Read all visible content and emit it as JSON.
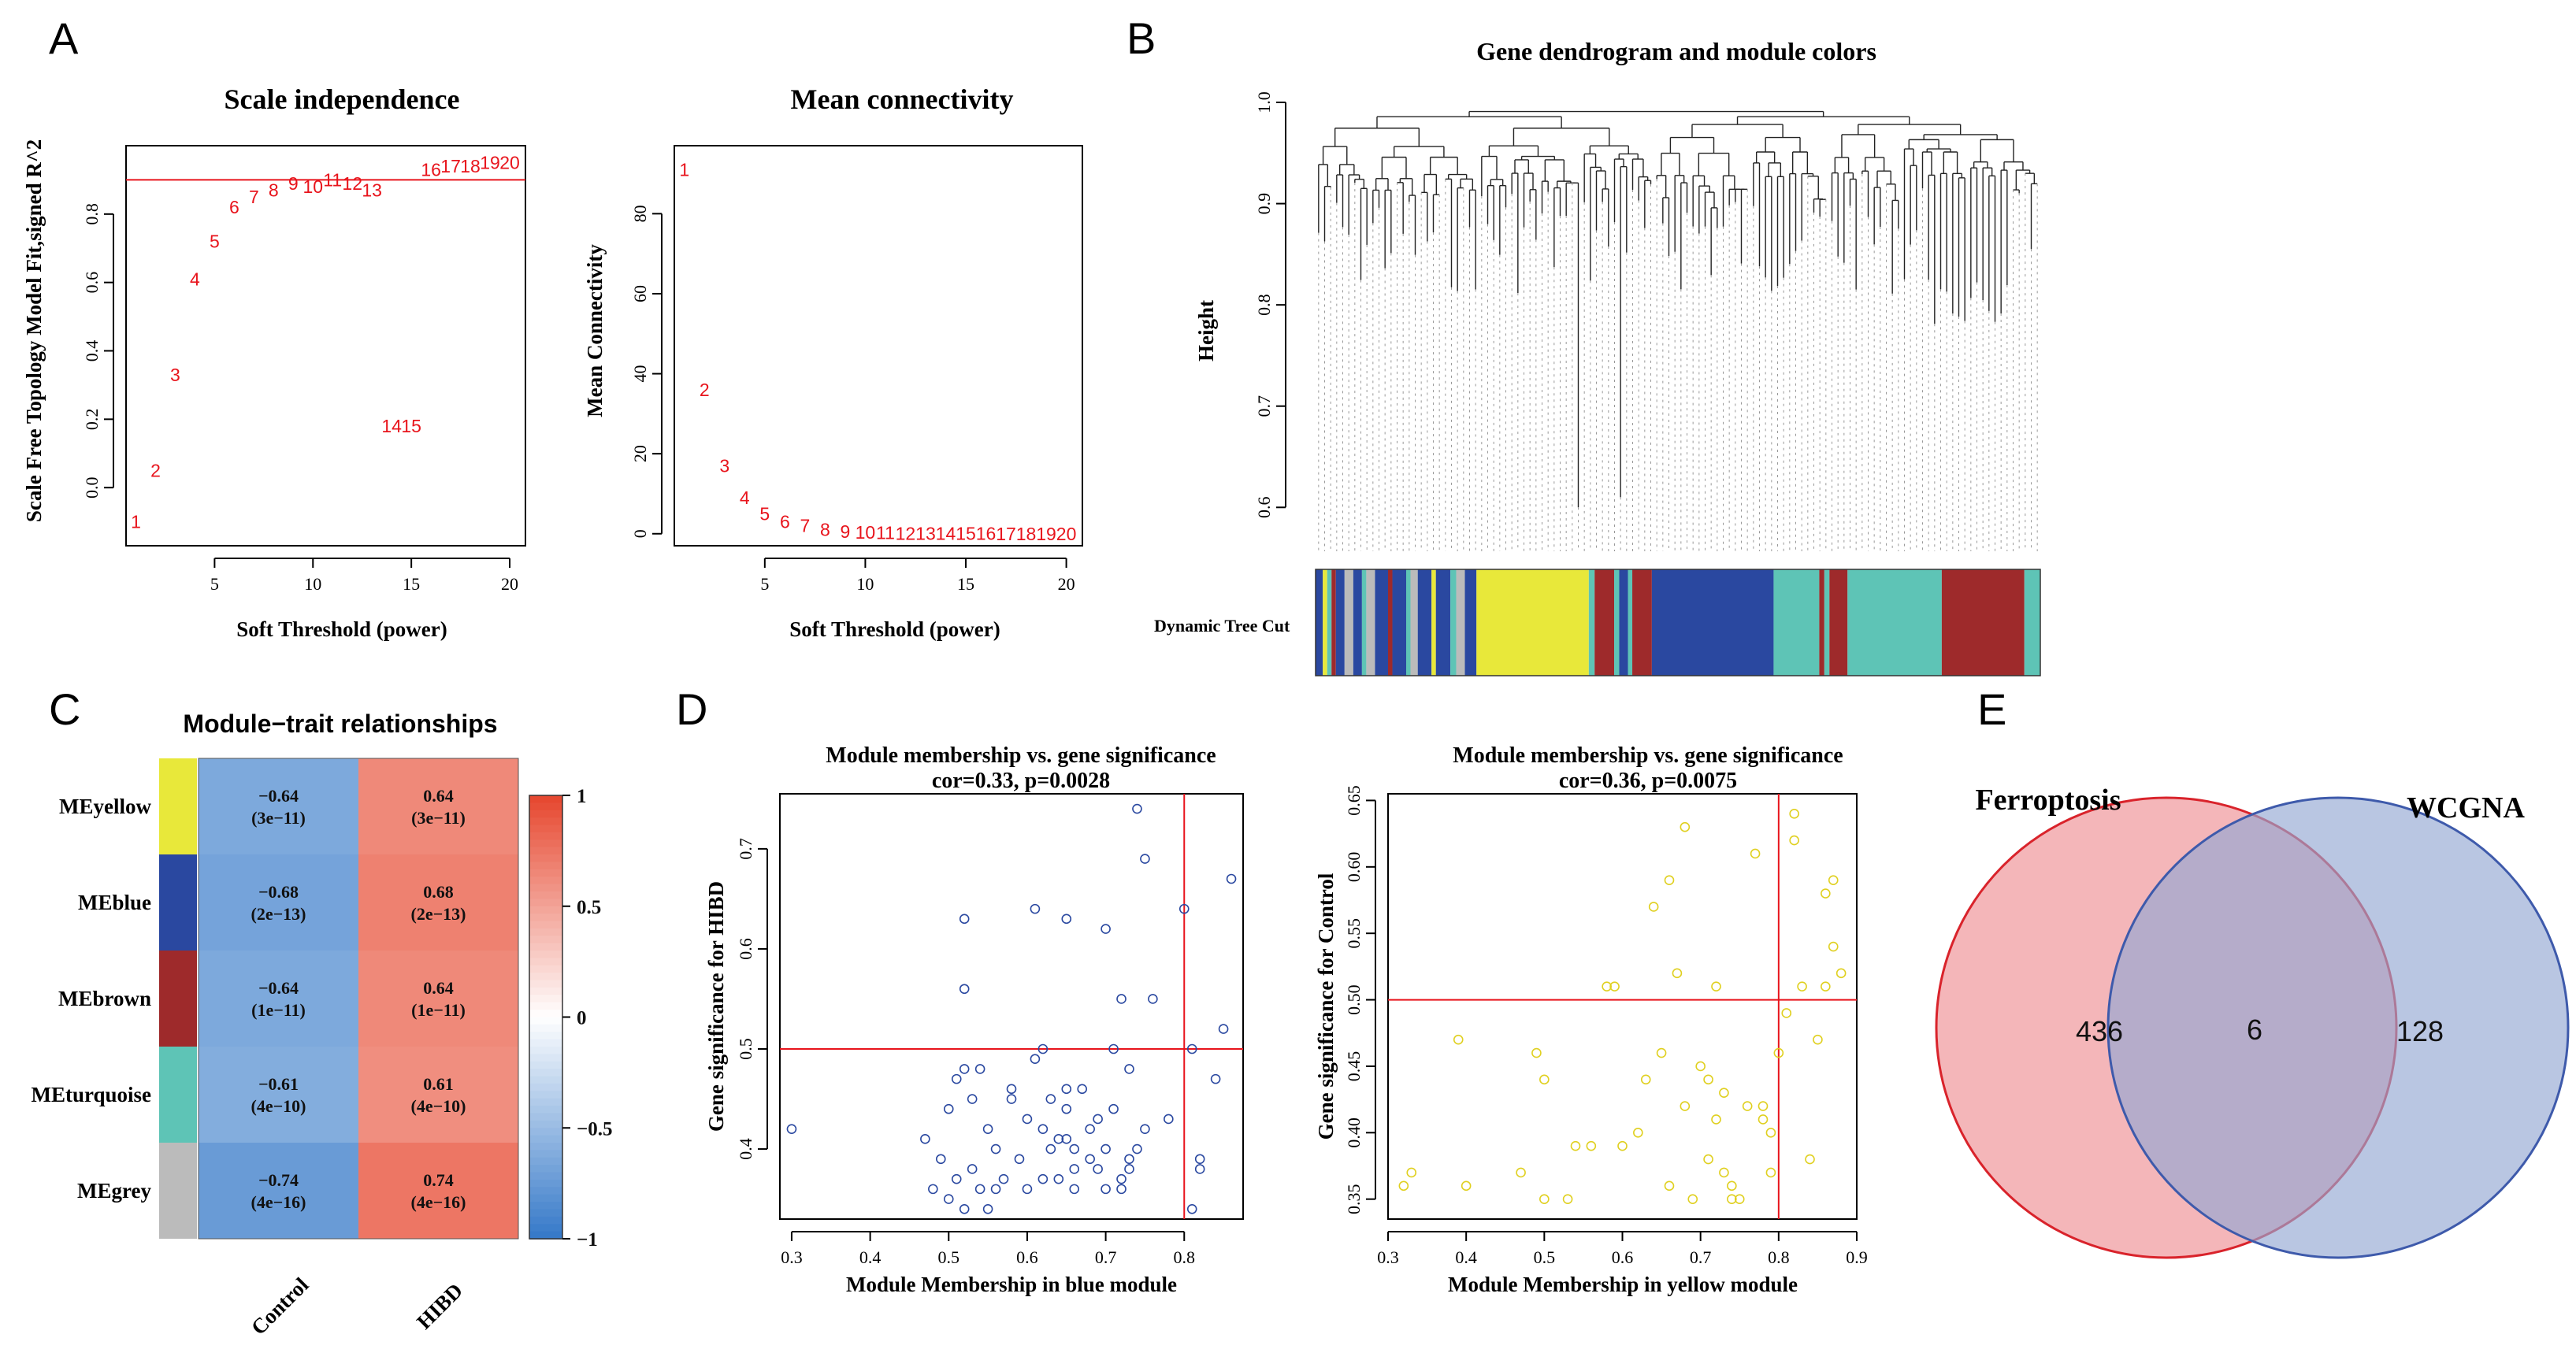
{
  "panels": {
    "A": "A",
    "B": "B",
    "C": "C",
    "D": "D",
    "E": "E"
  },
  "chart_data": [
    {
      "id": "A1",
      "type": "scatter",
      "title": "Scale independence",
      "xlabel": "Soft Threshold (power)",
      "ylabel": "Scale Free Topology Model Fit,signed R^2",
      "xlim": [
        0.5,
        20.8
      ],
      "ylim": [
        -0.17,
        1.0
      ],
      "xticks": [
        5,
        10,
        15,
        20
      ],
      "yticks": [
        0.0,
        0.2,
        0.4,
        0.6,
        0.8
      ],
      "hline": 0.9,
      "labels": [
        "1",
        "2",
        "3",
        "4",
        "5",
        "6",
        "7",
        "8",
        "9",
        "10",
        "11",
        "12",
        "13",
        "14",
        "15",
        "16",
        "17",
        "18",
        "19",
        "20"
      ],
      "x": [
        1,
        2,
        3,
        4,
        5,
        6,
        7,
        8,
        9,
        10,
        11,
        12,
        13,
        14,
        15,
        16,
        17,
        18,
        19,
        20
      ],
      "y": [
        -0.1,
        0.05,
        0.33,
        0.61,
        0.72,
        0.82,
        0.85,
        0.87,
        0.89,
        0.88,
        0.9,
        0.89,
        0.87,
        0.18,
        0.18,
        0.93,
        0.94,
        0.94,
        0.95,
        0.95
      ]
    },
    {
      "id": "A2",
      "type": "scatter",
      "title": "Mean connectivity",
      "xlabel": "Soft Threshold (power)",
      "ylabel": "Mean Connectivity",
      "xlim": [
        0.5,
        20.8
      ],
      "ylim": [
        -3,
        97
      ],
      "xticks": [
        5,
        10,
        15,
        20
      ],
      "yticks": [
        0,
        20,
        40,
        60,
        80
      ],
      "labels": [
        "1",
        "2",
        "3",
        "4",
        "5",
        "6",
        "7",
        "8",
        "9",
        "10",
        "11",
        "12",
        "13",
        "14",
        "15",
        "16",
        "17",
        "18",
        "19",
        "20"
      ],
      "x": [
        1,
        2,
        3,
        4,
        5,
        6,
        7,
        8,
        9,
        10,
        11,
        12,
        13,
        14,
        15,
        16,
        17,
        18,
        19,
        20
      ],
      "y": [
        91,
        36,
        17,
        9,
        5,
        3,
        2,
        1,
        0.5,
        0.3,
        0.2,
        0.1,
        0.1,
        0.1,
        0.1,
        0.1,
        0,
        0,
        0,
        0
      ]
    },
    {
      "id": "B",
      "type": "dendrogram",
      "title": "Gene dendrogram and module colors",
      "ylabel": "Height",
      "ylim": [
        0.58,
        1.0
      ],
      "yticks": [
        0.6,
        0.7,
        0.8,
        0.9,
        1.0
      ],
      "colorbar_label": "Dynamic Tree Cut",
      "module_segments": [
        {
          "color": "#2a48a0",
          "from": 0.0,
          "to": 0.01
        },
        {
          "color": "#e8e83a",
          "from": 0.01,
          "to": 0.016
        },
        {
          "color": "#5ec4b6",
          "from": 0.016,
          "to": 0.022
        },
        {
          "color": "#9e2a2b",
          "from": 0.022,
          "to": 0.028
        },
        {
          "color": "#2a48a0",
          "from": 0.028,
          "to": 0.04
        },
        {
          "color": "#bbbbbb",
          "from": 0.04,
          "to": 0.052
        },
        {
          "color": "#2a48a0",
          "from": 0.052,
          "to": 0.064
        },
        {
          "color": "#5ec4b6",
          "from": 0.064,
          "to": 0.07
        },
        {
          "color": "#bbbbbb",
          "from": 0.07,
          "to": 0.082
        },
        {
          "color": "#2a48a0",
          "from": 0.082,
          "to": 0.1
        },
        {
          "color": "#9e2a2b",
          "from": 0.1,
          "to": 0.106
        },
        {
          "color": "#2a48a0",
          "from": 0.106,
          "to": 0.125
        },
        {
          "color": "#5ec4b6",
          "from": 0.125,
          "to": 0.131
        },
        {
          "color": "#bbbbbb",
          "from": 0.131,
          "to": 0.141
        },
        {
          "color": "#2a48a0",
          "from": 0.141,
          "to": 0.16
        },
        {
          "color": "#e8e83a",
          "from": 0.16,
          "to": 0.166
        },
        {
          "color": "#2a48a0",
          "from": 0.166,
          "to": 0.186
        },
        {
          "color": "#5ec4b6",
          "from": 0.186,
          "to": 0.194
        },
        {
          "color": "#bbbbbb",
          "from": 0.194,
          "to": 0.206
        },
        {
          "color": "#2a48a0",
          "from": 0.206,
          "to": 0.222
        },
        {
          "color": "#e8e83a",
          "from": 0.222,
          "to": 0.377
        },
        {
          "color": "#5ec4b6",
          "from": 0.377,
          "to": 0.385
        },
        {
          "color": "#9e2a2b",
          "from": 0.385,
          "to": 0.412
        },
        {
          "color": "#5ec4b6",
          "from": 0.412,
          "to": 0.419
        },
        {
          "color": "#2a48a0",
          "from": 0.419,
          "to": 0.431
        },
        {
          "color": "#5ec4b6",
          "from": 0.431,
          "to": 0.437
        },
        {
          "color": "#9e2a2b",
          "from": 0.437,
          "to": 0.464
        },
        {
          "color": "#2a48a0",
          "from": 0.464,
          "to": 0.632
        },
        {
          "color": "#5ec4b6",
          "from": 0.632,
          "to": 0.695
        },
        {
          "color": "#9e2a2b",
          "from": 0.695,
          "to": 0.702
        },
        {
          "color": "#5ec4b6",
          "from": 0.702,
          "to": 0.709
        },
        {
          "color": "#9e2a2b",
          "from": 0.709,
          "to": 0.734
        },
        {
          "color": "#5ec4b6",
          "from": 0.734,
          "to": 0.864
        },
        {
          "color": "#9e2a2b",
          "from": 0.864,
          "to": 0.978
        },
        {
          "color": "#5ec4b6",
          "from": 0.978,
          "to": 1.0
        }
      ]
    },
    {
      "id": "C",
      "type": "heatmap",
      "title": "Module−trait relationships",
      "columns": [
        "Control",
        "HIBD"
      ],
      "rows": [
        "MEyellow",
        "MEblue",
        "MEbrown",
        "MEturquoise",
        "MEgrey"
      ],
      "row_colors": [
        "#e8e83a",
        "#2a48a0",
        "#9e2a2b",
        "#5ec4b6",
        "#bbbbbb"
      ],
      "values": [
        [
          -0.64,
          0.64
        ],
        [
          -0.68,
          0.68
        ],
        [
          -0.64,
          0.64
        ],
        [
          -0.61,
          0.61
        ],
        [
          -0.74,
          0.74
        ]
      ],
      "pvalues": [
        [
          "(3e−11)",
          "(3e−11)"
        ],
        [
          "(2e−13)",
          "(2e−13)"
        ],
        [
          "(1e−11)",
          "(1e−11)"
        ],
        [
          "(4e−10)",
          "(4e−10)"
        ],
        [
          "(4e−16)",
          "(4e−16)"
        ]
      ],
      "value_labels": [
        [
          "−0.64",
          "0.64"
        ],
        [
          "−0.68",
          "0.68"
        ],
        [
          "−0.64",
          "0.64"
        ],
        [
          "−0.61",
          "0.61"
        ],
        [
          "−0.74",
          "0.74"
        ]
      ],
      "scale": [
        -1,
        1
      ],
      "scale_ticks": [
        "1",
        "0.5",
        "0",
        "−0.5",
        "−1"
      ]
    },
    {
      "id": "D1",
      "type": "scatter",
      "title": "Module membership vs. gene significance",
      "subtitle": "cor=0.33, p=0.0028",
      "xlabel": "Module Membership in blue module",
      "ylabel": "Gene significance for  HIBD",
      "color": "#2a48a0",
      "xlim": [
        0.285,
        0.875
      ],
      "ylim": [
        0.33,
        0.755
      ],
      "xticks": [
        0.3,
        0.4,
        0.5,
        0.6,
        0.7,
        0.8
      ],
      "yticks": [
        0.4,
        0.5,
        0.6,
        0.7
      ],
      "vline": 0.8,
      "hline": 0.5,
      "x": [
        0.3,
        0.47,
        0.48,
        0.49,
        0.5,
        0.5,
        0.51,
        0.51,
        0.52,
        0.52,
        0.52,
        0.53,
        0.53,
        0.54,
        0.54,
        0.55,
        0.55,
        0.56,
        0.56,
        0.57,
        0.58,
        0.59,
        0.6,
        0.6,
        0.61,
        0.62,
        0.62,
        0.62,
        0.63,
        0.63,
        0.64,
        0.64,
        0.65,
        0.65,
        0.65,
        0.66,
        0.66,
        0.66,
        0.67,
        0.68,
        0.68,
        0.69,
        0.69,
        0.7,
        0.7,
        0.7,
        0.71,
        0.71,
        0.72,
        0.72,
        0.73,
        0.73,
        0.73,
        0.74,
        0.74,
        0.75,
        0.75,
        0.76,
        0.78,
        0.8,
        0.81,
        0.82,
        0.82,
        0.84,
        0.85,
        0.86,
        0.52,
        0.61,
        0.65,
        0.72,
        0.81,
        0.58
      ],
      "y": [
        0.42,
        0.41,
        0.36,
        0.39,
        0.44,
        0.35,
        0.37,
        0.47,
        0.56,
        0.63,
        0.34,
        0.45,
        0.38,
        0.36,
        0.48,
        0.42,
        0.34,
        0.4,
        0.36,
        0.37,
        0.45,
        0.39,
        0.36,
        0.43,
        0.64,
        0.5,
        0.42,
        0.37,
        0.45,
        0.4,
        0.41,
        0.37,
        0.46,
        0.44,
        0.63,
        0.4,
        0.38,
        0.36,
        0.46,
        0.42,
        0.39,
        0.43,
        0.38,
        0.62,
        0.4,
        0.36,
        0.5,
        0.44,
        0.55,
        0.37,
        0.38,
        0.48,
        0.39,
        0.4,
        0.74,
        0.42,
        0.69,
        0.55,
        0.43,
        0.64,
        0.5,
        0.38,
        0.39,
        0.47,
        0.52,
        0.67,
        0.48,
        0.49,
        0.41,
        0.36,
        0.34,
        0.46
      ]
    },
    {
      "id": "D2",
      "type": "scatter",
      "title": "Module membership vs. gene significance",
      "subtitle": "cor=0.36, p=0.0075",
      "xlabel": "Module Membership in yellow module",
      "ylabel": "Gene significance for  Control",
      "color": "#e0d020",
      "xlim": [
        0.3,
        0.9
      ],
      "ylim": [
        0.335,
        0.655
      ],
      "xticks": [
        0.3,
        0.4,
        0.5,
        0.6,
        0.7,
        0.8,
        0.9
      ],
      "yticks": [
        0.35,
        0.4,
        0.45,
        0.5,
        0.55,
        0.6,
        0.65
      ],
      "vline": 0.8,
      "hline": 0.5,
      "x": [
        0.32,
        0.33,
        0.39,
        0.4,
        0.47,
        0.49,
        0.5,
        0.5,
        0.53,
        0.54,
        0.56,
        0.58,
        0.59,
        0.6,
        0.62,
        0.63,
        0.64,
        0.65,
        0.66,
        0.67,
        0.68,
        0.68,
        0.69,
        0.7,
        0.71,
        0.71,
        0.72,
        0.73,
        0.73,
        0.74,
        0.74,
        0.75,
        0.76,
        0.77,
        0.78,
        0.78,
        0.79,
        0.8,
        0.81,
        0.82,
        0.82,
        0.83,
        0.84,
        0.85,
        0.86,
        0.86,
        0.87,
        0.87,
        0.88,
        0.72,
        0.66,
        0.79
      ],
      "y": [
        0.36,
        0.37,
        0.47,
        0.36,
        0.37,
        0.46,
        0.44,
        0.35,
        0.35,
        0.39,
        0.39,
        0.51,
        0.51,
        0.39,
        0.4,
        0.44,
        0.57,
        0.46,
        0.36,
        0.52,
        0.63,
        0.42,
        0.35,
        0.45,
        0.38,
        0.44,
        0.51,
        0.43,
        0.37,
        0.35,
        0.36,
        0.35,
        0.42,
        0.61,
        0.42,
        0.41,
        0.37,
        0.46,
        0.49,
        0.64,
        0.62,
        0.51,
        0.38,
        0.47,
        0.58,
        0.51,
        0.54,
        0.59,
        0.52,
        0.41,
        0.59,
        0.4
      ]
    }
  ],
  "venn": {
    "left_label": "Ferroptosis",
    "right_label": "WCGNA",
    "left_only": "436",
    "overlap": "6",
    "right_only": "128"
  }
}
